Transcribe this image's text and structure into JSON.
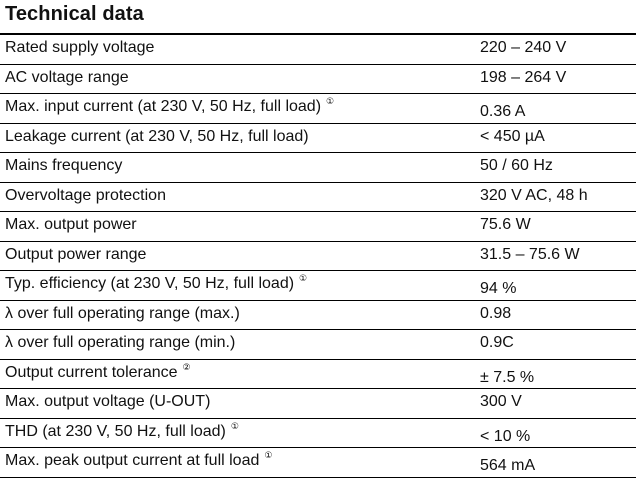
{
  "title": "Technical data",
  "rows": [
    {
      "label": "Rated supply voltage",
      "value": "220 – 240 V",
      "note": ""
    },
    {
      "label": "AC voltage range",
      "value": "198 – 264 V",
      "note": ""
    },
    {
      "label": "Max. input current (at 230 V, 50 Hz, full load)",
      "value": "0.36 A",
      "note": "①"
    },
    {
      "label": "Leakage current (at 230 V, 50 Hz, full load)",
      "value": "< 450 µA",
      "note": ""
    },
    {
      "label": "Mains frequency",
      "value": "50 / 60 Hz",
      "note": ""
    },
    {
      "label": "Overvoltage protection",
      "value": "320 V AC, 48 h",
      "note": ""
    },
    {
      "label": "Max. output power",
      "value": "75.6 W",
      "note": ""
    },
    {
      "label": "Output power range",
      "value": "31.5 – 75.6 W",
      "note": ""
    },
    {
      "label": "Typ. efficiency (at 230 V, 50 Hz, full load)",
      "value": "94 %",
      "note": "①"
    },
    {
      "label": "λ over full operating range (max.)",
      "value": "0.98",
      "note": ""
    },
    {
      "label": "λ over full operating range (min.)",
      "value": "0.9C",
      "note": ""
    },
    {
      "label": "Output current tolerance",
      "value": "± 7.5 %",
      "note": "②"
    },
    {
      "label": "Max. output voltage (U-OUT)",
      "value": "300 V",
      "note": ""
    },
    {
      "label": "THD (at 230 V, 50 Hz, full load)",
      "value": "< 10 %",
      "note": "①"
    },
    {
      "label": "Max. peak output current at full load",
      "value": "564 mA",
      "note": "①"
    }
  ]
}
